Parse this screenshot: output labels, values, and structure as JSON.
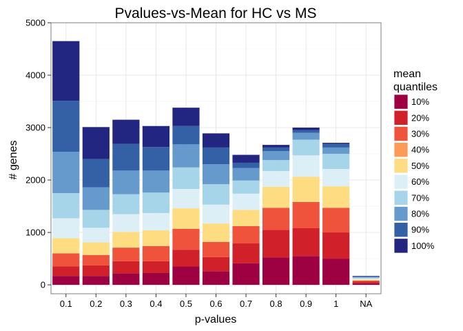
{
  "chart_data": {
    "type": "bar",
    "stacked": true,
    "title": "Pvalues-vs-Mean for HC vs MS",
    "xlabel": "p-values",
    "ylabel": "# genes",
    "ylim": [
      -170,
      5000
    ],
    "yticks": [
      0,
      1000,
      2000,
      3000,
      4000,
      5000
    ],
    "grid": true,
    "legend_position": "right",
    "legend_title": [
      "mean",
      "quantiles"
    ],
    "categories": [
      "0.1",
      "0.2",
      "0.3",
      "0.4",
      "0.5",
      "0.6",
      "0.7",
      "0.8",
      "0.9",
      "1",
      "NA"
    ],
    "series": [
      {
        "name": "10%",
        "color": "#9E0142",
        "values": [
          170,
          170,
          220,
          230,
          350,
          260,
          410,
          520,
          550,
          500,
          30
        ]
      },
      {
        "name": "20%",
        "color": "#D0202A",
        "values": [
          180,
          200,
          230,
          220,
          320,
          270,
          380,
          530,
          530,
          500,
          30
        ]
      },
      {
        "name": "30%",
        "color": "#F0533B",
        "values": [
          250,
          200,
          260,
          290,
          400,
          290,
          330,
          420,
          500,
          470,
          20
        ]
      },
      {
        "name": "40%",
        "color": "#FC9B55",
        "values": [
          0,
          0,
          0,
          0,
          0,
          0,
          0,
          0,
          0,
          0,
          0
        ]
      },
      {
        "name": "50%",
        "color": "#FEDC82",
        "values": [
          290,
          240,
          300,
          300,
          390,
          350,
          310,
          400,
          480,
          410,
          20
        ]
      },
      {
        "name": "60%",
        "color": "#DCEFF6",
        "values": [
          380,
          280,
          340,
          330,
          370,
          360,
          310,
          300,
          410,
          330,
          20
        ]
      },
      {
        "name": "70%",
        "color": "#A6D4E9",
        "values": [
          480,
          340,
          380,
          390,
          410,
          390,
          250,
          210,
          300,
          290,
          20
        ]
      },
      {
        "name": "80%",
        "color": "#6699CC",
        "values": [
          790,
          430,
          450,
          420,
          440,
          380,
          240,
          170,
          130,
          120,
          10
        ]
      },
      {
        "name": "90%",
        "color": "#3461A6",
        "values": [
          970,
          540,
          510,
          450,
          350,
          320,
          100,
          70,
          50,
          70,
          10
        ]
      },
      {
        "name": "100%",
        "color": "#232680",
        "values": [
          1140,
          610,
          460,
          400,
          350,
          270,
          150,
          50,
          50,
          20,
          10
        ]
      }
    ]
  }
}
